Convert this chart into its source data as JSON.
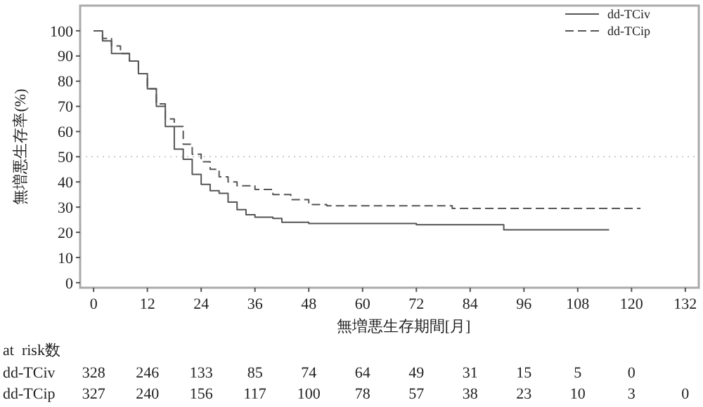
{
  "chart_data": {
    "type": "step",
    "xlabel": "無増悪生存期間[月]",
    "ylabel": "無増悪生存率(%)",
    "xlim": [
      -3,
      135
    ],
    "ylim": [
      -2,
      110
    ],
    "xticks": [
      0,
      12,
      24,
      36,
      48,
      60,
      72,
      84,
      96,
      108,
      120,
      132
    ],
    "yticks": [
      0,
      10,
      20,
      30,
      40,
      50,
      60,
      70,
      80,
      90,
      100
    ],
    "grid": false,
    "legend": "top right",
    "ref_lines": [
      {
        "axis": "y",
        "value": 50,
        "color": "#cccccc",
        "line_style": "dotted"
      }
    ],
    "series": [
      {
        "name": "dd-TCiv",
        "color": "#555555",
        "line_style": "solid",
        "x": [
          0,
          2,
          4,
          8,
          10,
          12,
          14,
          16,
          18,
          20,
          22,
          24,
          26,
          28,
          30,
          32,
          34,
          36,
          40,
          42,
          48,
          57,
          72,
          91,
          91.5,
          115
        ],
        "values": [
          100,
          96,
          91,
          88,
          83,
          77,
          70,
          62,
          53,
          49,
          43,
          39,
          36.5,
          35.5,
          32,
          29,
          27,
          26,
          25.5,
          24,
          23.5,
          23.5,
          23,
          23,
          21,
          21
        ]
      },
      {
        "name": "dd-TCip",
        "color": "#555555",
        "line_style": "dashed",
        "x": [
          0,
          2,
          4,
          6,
          8,
          10,
          12,
          14,
          16,
          18,
          20,
          22,
          24,
          26,
          28,
          30,
          32,
          36,
          40,
          44,
          48,
          52,
          60,
          80,
          122
        ],
        "values": [
          100,
          97,
          94,
          91,
          88,
          83,
          77,
          71,
          65,
          62,
          55,
          51,
          48,
          45,
          42,
          40,
          38.5,
          37,
          35,
          33,
          31,
          30.5,
          30.5,
          29.5,
          29.5
        ]
      }
    ],
    "annotations": [
      "at  risk数",
      "dd-TCiv 328 246 133 85 74 64 49 31 15 5 0",
      "dd-TCip 327 240 156 117 100 78 57 38 23 10 3 0"
    ]
  }
}
